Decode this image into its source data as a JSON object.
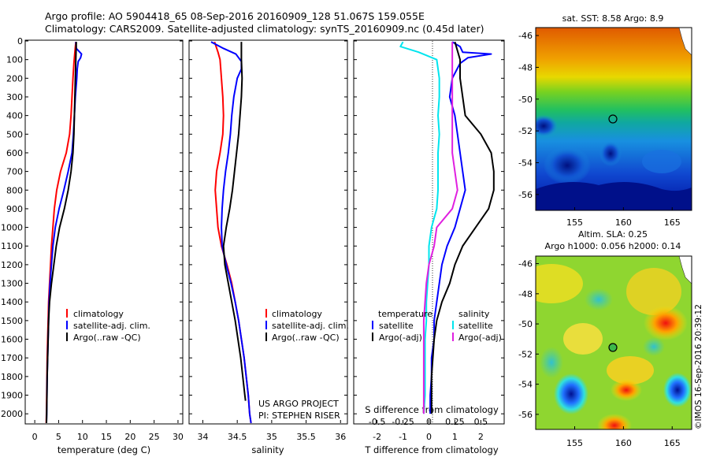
{
  "header": {
    "title_line1": "Argo profile: AO 5904418_65 08-Sep-2016 20160909_128 51.067S 159.055E",
    "title_line2": "Climatology: CARS2009. Satellite-adjusted climatology: synTS_20160909.nc (0.45d later)"
  },
  "colors": {
    "climatology": "#ff0000",
    "satellite": "#0000ff",
    "argo": "#000000",
    "satellite_salinity": "#00e5ee",
    "argo_adj_salinity": "#e020e0"
  },
  "depth_axis": {
    "ticks": [
      0,
      100,
      200,
      300,
      400,
      500,
      600,
      700,
      800,
      900,
      1000,
      1100,
      1200,
      1300,
      1400,
      1500,
      1600,
      1700,
      1800,
      1900,
      2000
    ],
    "max": 2050
  },
  "temp_panel": {
    "xlabel": "temperature (deg C)",
    "ticks": [
      "0",
      "5",
      "10",
      "15",
      "20",
      "25",
      "30"
    ],
    "legend": [
      "climatology",
      "satellite-adj. clim.",
      "Argo(..raw -QC)"
    ],
    "chart_data": {
      "type": "line",
      "xlim": [
        -2,
        31
      ],
      "series": [
        {
          "name": "climatology",
          "y": [
            5,
            60,
            120,
            200,
            300,
            400,
            500,
            600,
            700,
            800,
            900,
            1000,
            1100,
            1200,
            1300,
            1400,
            1500,
            1600,
            1700,
            1800,
            1900,
            2000,
            2050
          ],
          "x": [
            8.6,
            8.4,
            8.2,
            8.0,
            7.8,
            7.6,
            7.3,
            6.6,
            5.4,
            4.6,
            4.1,
            3.8,
            3.5,
            3.3,
            3.1,
            2.9,
            2.8,
            2.7,
            2.6,
            2.55,
            2.5,
            2.45,
            2.4
          ]
        },
        {
          "name": "satellite-adj. clim.",
          "y": [
            5,
            40,
            70,
            90,
            110,
            150,
            200,
            300,
            400,
            500,
            600,
            700,
            800,
            900,
            1000,
            1100,
            1200,
            1300,
            1400,
            1500,
            1600,
            1700,
            1800,
            1900,
            2000,
            2050
          ],
          "x": [
            8.6,
            8.7,
            9.8,
            9.6,
            9.1,
            8.9,
            8.8,
            8.5,
            8.3,
            8.1,
            7.8,
            7.0,
            6.1,
            5.1,
            4.3,
            3.8,
            3.5,
            3.2,
            3.0,
            2.9,
            2.8,
            2.7,
            2.6,
            2.55,
            2.5,
            2.45
          ]
        },
        {
          "name": "Argo(..raw -QC)",
          "y": [
            5,
            100,
            200,
            300,
            400,
            500,
            600,
            700,
            800,
            900,
            1000,
            1100,
            1200,
            1300,
            1400,
            1500,
            1600,
            1700,
            1800,
            1900,
            2000,
            2050
          ],
          "x": [
            8.7,
            8.6,
            8.5,
            8.4,
            8.3,
            8.2,
            8.0,
            7.6,
            7.0,
            6.2,
            5.2,
            4.5,
            4.0,
            3.5,
            3.1,
            2.9,
            2.8,
            2.7,
            2.6,
            2.55,
            2.5,
            2.45
          ]
        }
      ]
    }
  },
  "sal_panel": {
    "xlabel": "salinity",
    "ticks": [
      "34",
      "34.5",
      "35",
      "35.5",
      "36"
    ],
    "legend": [
      "climatology",
      "satellite-adj. clim.",
      "Argo(..raw -QC)"
    ],
    "credit_line1": "US ARGO PROJECT",
    "credit_line2": "PI: STEPHEN RISER",
    "chart_data": {
      "type": "line",
      "xlim": [
        33.8,
        36.1
      ],
      "series": [
        {
          "name": "climatology",
          "y": [
            5,
            60,
            100,
            150,
            200,
            300,
            400,
            500,
            600,
            700,
            800,
            900,
            1000,
            1100,
            1200,
            1300,
            1400,
            1500,
            1600,
            1700,
            1800,
            1900,
            2000,
            2050
          ],
          "x": [
            34.17,
            34.22,
            34.25,
            34.26,
            34.27,
            34.29,
            34.3,
            34.29,
            34.25,
            34.2,
            34.18,
            34.2,
            34.22,
            34.27,
            34.35,
            34.42,
            34.47,
            34.52,
            34.56,
            34.6,
            34.63,
            34.66,
            34.68,
            34.7
          ]
        },
        {
          "name": "satellite-adj. clim.",
          "y": [
            5,
            40,
            70,
            110,
            150,
            200,
            300,
            400,
            500,
            600,
            700,
            800,
            900,
            1000,
            1100,
            1200,
            1300,
            1400,
            1500,
            1600,
            1700,
            1800,
            1900,
            2000,
            2050
          ],
          "x": [
            34.12,
            34.3,
            34.48,
            34.56,
            34.56,
            34.5,
            34.45,
            34.42,
            34.4,
            34.37,
            34.33,
            34.3,
            34.28,
            34.27,
            34.28,
            34.34,
            34.41,
            34.47,
            34.52,
            34.56,
            34.6,
            34.63,
            34.66,
            34.68,
            34.7
          ]
        },
        {
          "name": "Argo(..raw -QC)",
          "y": [
            5,
            100,
            200,
            300,
            400,
            500,
            600,
            700,
            800,
            900,
            1000,
            1100,
            1200,
            1300,
            1400,
            1500,
            1600,
            1700,
            1800,
            1900,
            1930
          ],
          "x": [
            34.56,
            34.56,
            34.57,
            34.56,
            34.54,
            34.52,
            34.49,
            34.46,
            34.43,
            34.39,
            34.34,
            34.3,
            34.32,
            34.37,
            34.42,
            34.47,
            34.51,
            34.55,
            34.58,
            34.61,
            34.62
          ]
        }
      ]
    }
  },
  "diff_panel": {
    "s_label": "S difference from climatology",
    "t_label": "T difference from climatology",
    "s_ticks": [
      "-0.5",
      "-0.25",
      "0",
      "0.25",
      "0.5"
    ],
    "t_ticks": [
      "-2",
      "-1",
      "0",
      "1",
      "2"
    ],
    "legend_temperature": "temperature",
    "legend_salinity": "salinity",
    "legend_satellite": "satellite",
    "legend_argo_adj": "Argo(-adj)",
    "chart_data": {
      "type": "line",
      "xlim_t": [
        -2.9,
        2.9
      ],
      "series": [
        {
          "name": "temperature satellite",
          "y": [
            5,
            30,
            60,
            70,
            90,
            120,
            200,
            300,
            400,
            600,
            700,
            800,
            900,
            1000,
            1100,
            1200,
            1300,
            1400,
            1500,
            1600,
            1700,
            1800,
            1900,
            2000
          ],
          "x": [
            0.9,
            1.2,
            1.3,
            2.4,
            1.5,
            1.2,
            0.9,
            0.8,
            1.0,
            1.2,
            1.3,
            1.4,
            1.2,
            1.0,
            0.7,
            0.5,
            0.4,
            0.3,
            0.2,
            0.2,
            0.1,
            0.1,
            0.05,
            0.05
          ]
        },
        {
          "name": "temperature Argo(-adj)",
          "y": [
            5,
            100,
            200,
            300,
            400,
            500,
            600,
            700,
            800,
            900,
            1000,
            1100,
            1200,
            1300,
            1400,
            1500,
            1600,
            1700,
            1800,
            1900,
            2000
          ],
          "x": [
            1.0,
            1.2,
            1.2,
            1.3,
            1.4,
            2.0,
            2.4,
            2.5,
            2.5,
            2.3,
            1.8,
            1.3,
            1.0,
            0.8,
            0.5,
            0.3,
            0.2,
            0.15,
            0.1,
            0.1,
            0.1
          ]
        },
        {
          "name": "salinity satellite",
          "y": [
            5,
            30,
            60,
            100,
            200,
            300,
            400,
            500,
            600,
            700,
            800,
            900,
            1000,
            1100,
            1200,
            1300,
            1400,
            1500,
            1600,
            1700,
            1800,
            1900,
            2000
          ],
          "x": [
            -1.0,
            -1.1,
            -0.4,
            0.3,
            0.4,
            0.4,
            0.35,
            0.4,
            0.35,
            0.35,
            0.35,
            0.3,
            0.1,
            0.0,
            0.0,
            -0.05,
            -0.1,
            -0.1,
            -0.15,
            -0.15,
            -0.15,
            -0.15,
            -0.2
          ]
        },
        {
          "name": "salinity Argo(-adj)",
          "y": [
            5,
            40,
            100,
            200,
            300,
            400,
            500,
            600,
            700,
            800,
            900,
            1000,
            1100,
            1200,
            1300,
            1400,
            1500,
            1600,
            1700,
            1800,
            1900,
            2000
          ],
          "x": [
            0.9,
            0.9,
            0.9,
            0.9,
            0.9,
            0.9,
            0.9,
            0.9,
            1.0,
            1.1,
            0.9,
            0.3,
            0.2,
            0.0,
            -0.1,
            -0.15,
            -0.2,
            -0.2,
            -0.2,
            -0.2,
            -0.2,
            -0.2
          ]
        }
      ]
    }
  },
  "sst_map": {
    "title": "sat. SST: 8.58 Argo: 8.9",
    "lat_ticks": [
      "-46",
      "-48",
      "-50",
      "-52",
      "-54",
      "-56"
    ],
    "lon_ticks": [
      "155",
      "160",
      "165"
    ],
    "argo_position": {
      "lon": 159.055,
      "lat": -51.067
    }
  },
  "sla_map": {
    "title_line1": "Altim. SLA: 0.25",
    "title_line2": "Argo h1000: 0.056 h2000: 0.14",
    "lat_ticks": [
      "-46",
      "-48",
      "-50",
      "-52",
      "-54",
      "-56"
    ],
    "lon_ticks": [
      "155",
      "160",
      "165"
    ],
    "argo_position": {
      "lon": 159.055,
      "lat": -51.067
    }
  },
  "imos_stamp": "©IMOS 16-Sep-2016 20:39:12"
}
